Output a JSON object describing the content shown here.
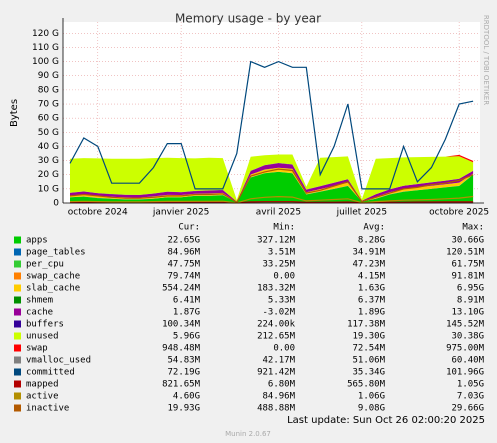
{
  "chart_data": {
    "type": "area",
    "title": "Memory usage - by year",
    "y_label": "Bytes",
    "side_text": "RRDTOOL / TOBI OETIKER",
    "categories": [
      null,
      null,
      "octobre 2024",
      null,
      null,
      null,
      null,
      null,
      "janvier 2025",
      null,
      null,
      null,
      null,
      null,
      null,
      "avril 2025",
      null,
      null,
      null,
      null,
      null,
      "juillet 2025",
      null,
      null,
      null,
      null,
      null,
      null,
      "octobre 2025",
      null
    ],
    "ylim": [
      0,
      128
    ],
    "yticks": [
      {
        "value": 0,
        "label": "0"
      },
      {
        "value": 10,
        "label": "10 G"
      },
      {
        "value": 20,
        "label": "20 G"
      },
      {
        "value": 30,
        "label": "30 G"
      },
      {
        "value": 40,
        "label": "40 G"
      },
      {
        "value": 50,
        "label": "50 G"
      },
      {
        "value": 60,
        "label": "60 G"
      },
      {
        "value": 70,
        "label": "70 G"
      },
      {
        "value": 80,
        "label": "80 G"
      },
      {
        "value": 90,
        "label": "90 G"
      },
      {
        "value": 100,
        "label": "100 G"
      },
      {
        "value": 110,
        "label": "110 G"
      },
      {
        "value": 120,
        "label": "120 G"
      }
    ],
    "grid": true,
    "legend_columns": [
      "Cur:",
      "Min:",
      "Avg:",
      "Max:"
    ],
    "series": [
      {
        "name": "apps",
        "color": "#00cc00",
        "style": "area",
        "stats": [
          "22.65G",
          "327.12M",
          "8.28G",
          "30.66G"
        ],
        "values": [
          4,
          4.5,
          3.5,
          3,
          2.5,
          2.5,
          3,
          4,
          4,
          5,
          5,
          5.5,
          0.5,
          18,
          21,
          22,
          21,
          6,
          8,
          10,
          12,
          1,
          3,
          6,
          8,
          9,
          10,
          11,
          12,
          20
        ]
      },
      {
        "name": "page_tables",
        "color": "#0066b3",
        "style": "area",
        "stats": [
          "84.96M",
          "3.51M",
          "34.91M",
          "120.51M"
        ],
        "values": [
          0.08,
          0.08,
          0.08,
          0.08,
          0.08,
          0.08,
          0.08,
          0.08,
          0.08,
          0.08,
          0.08,
          0.08,
          0.01,
          0.1,
          0.1,
          0.1,
          0.1,
          0.08,
          0.08,
          0.08,
          0.08,
          0.01,
          0.08,
          0.08,
          0.08,
          0.08,
          0.08,
          0.08,
          0.08,
          0.08
        ]
      },
      {
        "name": "per_cpu",
        "color": "#33cc33",
        "style": "area",
        "stats": [
          "47.75M",
          "33.25M",
          "47.23M",
          "61.75M"
        ],
        "values": [
          0.05,
          0.05,
          0.05,
          0.05,
          0.05,
          0.05,
          0.05,
          0.05,
          0.05,
          0.05,
          0.05,
          0.05,
          0.05,
          0.05,
          0.05,
          0.05,
          0.05,
          0.05,
          0.05,
          0.05,
          0.05,
          0.05,
          0.05,
          0.05,
          0.05,
          0.05,
          0.05,
          0.05,
          0.05,
          0.05
        ]
      },
      {
        "name": "swap_cache",
        "color": "#ff8000",
        "style": "area",
        "stats": [
          "79.74M",
          "0.00",
          "4.15M",
          "91.81M"
        ],
        "values": [
          0,
          0,
          0,
          0,
          0,
          0,
          0,
          0,
          0,
          0,
          0,
          0,
          0,
          0,
          0,
          0,
          0,
          0,
          0,
          0,
          0,
          0,
          0,
          0,
          0,
          0,
          0,
          0,
          0.08,
          0.08
        ]
      },
      {
        "name": "slab_cache",
        "color": "#ffcc00",
        "style": "area",
        "stats": [
          "554.24M",
          "183.32M",
          "1.63G",
          "6.95G"
        ],
        "values": [
          1.2,
          1.5,
          1.4,
          1.3,
          1.3,
          1.2,
          1.5,
          1.6,
          1.5,
          1.4,
          1.6,
          1.5,
          0.2,
          2,
          2.5,
          2.8,
          3,
          1.5,
          1.7,
          2,
          2.2,
          0.3,
          1.2,
          1.5,
          1.8,
          1.9,
          2,
          2.1,
          2.2,
          0.6
        ]
      },
      {
        "name": "shmem",
        "color": "#008f00",
        "style": "area",
        "stats": [
          "6.41M",
          "5.33M",
          "6.37M",
          "8.91M"
        ],
        "values": [
          0.006,
          0.006,
          0.006,
          0.006,
          0.006,
          0.006,
          0.006,
          0.006,
          0.006,
          0.006,
          0.006,
          0.006,
          0.006,
          0.006,
          0.006,
          0.006,
          0.006,
          0.006,
          0.006,
          0.006,
          0.006,
          0.006,
          0.006,
          0.006,
          0.006,
          0.006,
          0.006,
          0.006,
          0.006,
          0.006
        ]
      },
      {
        "name": "cache",
        "color": "#990099",
        "style": "area",
        "stats": [
          "1.87G",
          "-3.02M",
          "1.89G",
          "13.10G"
        ],
        "values": [
          1.8,
          2,
          1.9,
          1.8,
          1.8,
          1.8,
          2,
          2.2,
          2,
          1.9,
          2.1,
          2,
          0.3,
          2.5,
          3,
          3.2,
          3,
          1.8,
          2,
          2.2,
          2.5,
          0.3,
          1.8,
          2,
          2.2,
          2.3,
          2.4,
          2.5,
          2.6,
          1.9
        ]
      },
      {
        "name": "buffers",
        "color": "#330099",
        "style": "area",
        "stats": [
          "100.34M",
          "224.00k",
          "117.38M",
          "145.52M"
        ],
        "values": [
          0.1,
          0.1,
          0.1,
          0.1,
          0.1,
          0.1,
          0.1,
          0.1,
          0.1,
          0.1,
          0.1,
          0.1,
          0.01,
          0.12,
          0.12,
          0.12,
          0.12,
          0.1,
          0.1,
          0.1,
          0.1,
          0.01,
          0.1,
          0.1,
          0.1,
          0.1,
          0.1,
          0.1,
          0.1,
          0.1
        ]
      },
      {
        "name": "unused",
        "color": "#ccff00",
        "style": "area",
        "stats": [
          "5.96G",
          "212.65M",
          "19.30G",
          "30.38G"
        ],
        "values": [
          24,
          23.5,
          24.5,
          25,
          25.5,
          25.5,
          25,
          24,
          24,
          23,
          23,
          22.5,
          1,
          10,
          7,
          6,
          7,
          2,
          20,
          18,
          16,
          1,
          25,
          22,
          20,
          19,
          18,
          17,
          16,
          6
        ]
      },
      {
        "name": "swap",
        "color": "#ff0000",
        "style": "area",
        "stats": [
          "948.48M",
          "0.00",
          "72.54M",
          "975.00M"
        ],
        "values": [
          0,
          0,
          0,
          0,
          0,
          0,
          0,
          0,
          0,
          0,
          0,
          0,
          0,
          0,
          0,
          0,
          0,
          0,
          0,
          0,
          0,
          0,
          0,
          0,
          0,
          0,
          0,
          0,
          0.9,
          0.95
        ]
      },
      {
        "name": "vmalloc_used",
        "color": "#808080",
        "style": "line",
        "stats": [
          "54.83M",
          "42.17M",
          "51.06M",
          "60.40M"
        ],
        "values": [
          0.05,
          0.05,
          0.05,
          0.05,
          0.05,
          0.05,
          0.05,
          0.05,
          0.05,
          0.05,
          0.05,
          0.05,
          0.05,
          0.05,
          0.05,
          0.05,
          0.05,
          0.05,
          0.05,
          0.05,
          0.05,
          0.05,
          0.05,
          0.05,
          0.05,
          0.05,
          0.05,
          0.05,
          0.05,
          0.05
        ]
      },
      {
        "name": "committed",
        "color": "#00487d",
        "style": "line",
        "stats": [
          "72.19G",
          "921.42M",
          "35.34G",
          "101.96G"
        ],
        "values": [
          28,
          46,
          40,
          14,
          14,
          14,
          25,
          42,
          42,
          10,
          10,
          10,
          35,
          100,
          96,
          100,
          96,
          96,
          20,
          40,
          70,
          10,
          10,
          10,
          40,
          15,
          25,
          45,
          70,
          72
        ]
      },
      {
        "name": "mapped",
        "color": "#b30000",
        "style": "line",
        "stats": [
          "821.65M",
          "6.80M",
          "565.80M",
          "1.05G"
        ],
        "values": [
          0.5,
          0.5,
          0.5,
          0.5,
          0.5,
          0.5,
          0.6,
          0.6,
          0.6,
          0.6,
          0.6,
          0.6,
          0.1,
          0.8,
          0.9,
          0.9,
          0.9,
          0.5,
          0.6,
          0.6,
          0.7,
          0.1,
          0.5,
          0.6,
          0.6,
          0.7,
          0.7,
          0.8,
          0.8,
          0.8
        ]
      },
      {
        "name": "active",
        "color": "#b38f00",
        "style": "line",
        "stats": [
          "4.60G",
          "84.96M",
          "1.06G",
          "7.03G"
        ],
        "values": [
          1,
          1.2,
          1,
          0.8,
          0.8,
          0.8,
          1,
          1.1,
          1.1,
          1.2,
          1.2,
          1.3,
          0.1,
          3,
          4,
          4.5,
          4.2,
          1.5,
          2,
          2.5,
          3,
          0.2,
          1,
          1.5,
          2,
          2.2,
          2.5,
          3,
          3.5,
          4.6
        ]
      },
      {
        "name": "inactive",
        "color": "#b35a00",
        "style": "line",
        "stats": [
          "19.93G",
          "488.88M",
          "9.08G",
          "29.66G"
        ],
        "values": [
          5,
          6,
          5,
          4,
          3.5,
          3.5,
          4,
          5,
          5,
          6,
          6,
          6.5,
          0.5,
          19,
          22,
          24,
          23,
          7,
          9,
          12,
          15,
          1,
          4,
          7,
          10,
          11,
          13,
          14,
          16,
          19.93
        ]
      }
    ],
    "footer": {
      "last_update": "Last update: Sun Oct 26 02:00:20 2025",
      "version": "Munin 2.0.67"
    }
  }
}
